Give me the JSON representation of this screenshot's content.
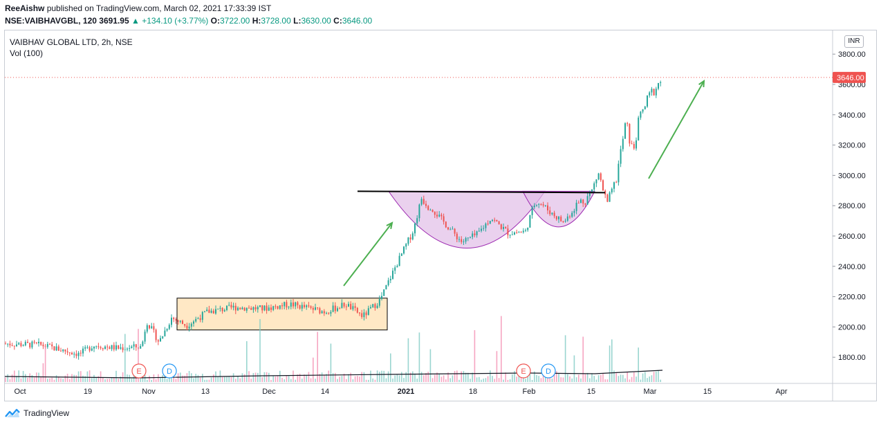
{
  "header": {
    "author": "ReeAishw",
    "published": "published on TradingView.com, March 02, 2021 17:33:39 IST",
    "symbol": "NSE:VAIBHAVGBL, 120",
    "last": "3691.95",
    "change": "▲ +134.10 (+3.77%)",
    "o_label": "O:",
    "o": "3722.00",
    "h_label": "H:",
    "h": "3728.00",
    "l_label": "L:",
    "l": "3630.00",
    "c_label": "C:",
    "c": "3646.00"
  },
  "legend": {
    "title": "VAIBHAV GLOBAL LTD, 2h, NSE",
    "volume": "Vol (100)"
  },
  "currency_button": "INR",
  "footer": {
    "brand": "TradingView"
  },
  "colors": {
    "up": "#26a69a",
    "down": "#ef5350",
    "arrow": "#4caf50",
    "cup_fill": "#e1bee7",
    "cup_stroke": "#9c27b0",
    "box_fill": "#ffe0b2",
    "price_tag": "#ef5350"
  },
  "chart_data": {
    "type": "candlestick",
    "y_axis": {
      "ticks": [
        "1800.00",
        "2000.00",
        "2200.00",
        "2400.00",
        "2600.00",
        "2800.00",
        "3000.00",
        "3200.00",
        "3400.00",
        "3600.00",
        "3800.00"
      ],
      "range": [
        1620,
        3900
      ]
    },
    "x_axis": {
      "labels": [
        "Oct",
        "19",
        "Nov",
        "13",
        "Dec",
        "14",
        "2021",
        "18",
        "Feb",
        "15",
        "Mar",
        "15",
        "Apr"
      ]
    },
    "last_price_tag": "3646.00",
    "last_price": 3646,
    "price_path": [
      [
        "Oct",
        1890
      ],
      [
        "19",
        1830
      ],
      [
        "Nov",
        1950
      ],
      [
        "13",
        2080
      ],
      [
        "Dec",
        2130
      ],
      [
        "14",
        2110
      ],
      [
        "2021",
        2700
      ],
      [
        "18",
        2620
      ],
      [
        "Feb",
        2780
      ],
      [
        "15",
        2880
      ],
      [
        "Mar",
        3640
      ]
    ],
    "events": [
      {
        "label": "E",
        "date": "Nov"
      },
      {
        "label": "D",
        "date": "Nov"
      },
      {
        "label": "E",
        "date": "Feb"
      },
      {
        "label": "D",
        "date": "Feb"
      }
    ],
    "annotations": {
      "resistance_level": 2895,
      "consolidation_box": {
        "price_low": 1980,
        "price_high": 2190
      },
      "cup_bottom": 2520,
      "handle_bottom": 2660
    }
  }
}
